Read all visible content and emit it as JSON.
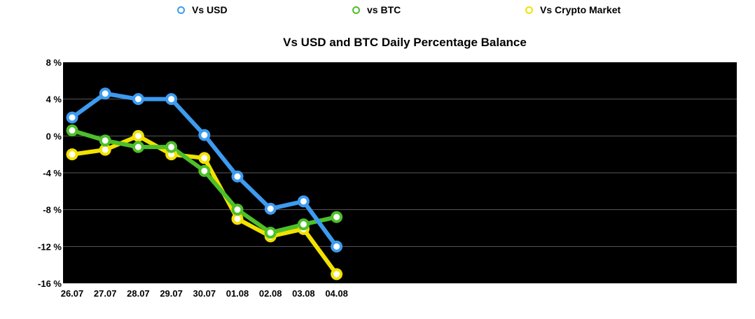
{
  "chart_data": {
    "type": "line",
    "title": "Vs USD and BTC Daily Percentage Balance",
    "categories": [
      "26.07",
      "27.07",
      "28.07",
      "29.07",
      "30.07",
      "01.08",
      "02.08",
      "03.08",
      "04.08"
    ],
    "ylim": [
      -16,
      8
    ],
    "yticks": [
      8,
      4,
      0,
      -4,
      -8,
      -12,
      -16
    ],
    "ytick_labels": [
      "8 %",
      "4 %",
      "0 %",
      "-4 %",
      "-8 %",
      "-12 %",
      "-16 %"
    ],
    "grid": true,
    "legend_position": "top",
    "plot_background": "#000000",
    "series": [
      {
        "name": "Vs USD",
        "color": "#3D9BF0",
        "values": [
          2.0,
          4.6,
          4.0,
          4.0,
          0.1,
          -4.4,
          -7.9,
          -7.1,
          -12.0
        ]
      },
      {
        "name": "vs BTC",
        "color": "#4DBF2A",
        "values": [
          0.6,
          -0.5,
          -1.2,
          -1.2,
          -3.8,
          -8.0,
          -10.5,
          -9.6,
          -8.8
        ]
      },
      {
        "name": "Vs Crypto Market",
        "color": "#F2E200",
        "values": [
          -2.0,
          -1.5,
          0.0,
          -2.0,
          -2.4,
          -9.0,
          -10.9,
          -10.1,
          -15.0
        ]
      }
    ]
  }
}
